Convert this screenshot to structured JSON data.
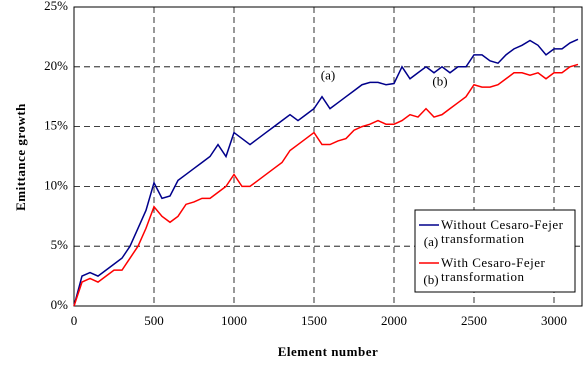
{
  "chart_data": {
    "type": "line",
    "xlabel": "Element number",
    "ylabel": "Emittance growth",
    "x": [
      0,
      50,
      100,
      150,
      200,
      250,
      300,
      350,
      400,
      450,
      500,
      550,
      600,
      650,
      700,
      750,
      800,
      850,
      900,
      950,
      1000,
      1050,
      1100,
      1150,
      1200,
      1250,
      1300,
      1350,
      1400,
      1450,
      1500,
      1550,
      1600,
      1650,
      1700,
      1750,
      1800,
      1850,
      1900,
      1950,
      2000,
      2050,
      2100,
      2150,
      2200,
      2250,
      2300,
      2350,
      2400,
      2450,
      2500,
      2550,
      2600,
      2650,
      2700,
      2750,
      2800,
      2850,
      2900,
      2950,
      3000,
      3050,
      3100,
      3150
    ],
    "series": [
      {
        "name": "Without Cesaro-Fejer transformation",
        "label": "(a)",
        "color": "#00008b",
        "values": [
          0,
          2.5,
          2.8,
          2.5,
          3,
          3.5,
          4,
          5,
          6.5,
          8,
          10.3,
          9,
          9.2,
          10.5,
          11,
          11.5,
          12,
          12.5,
          13.5,
          12.5,
          14.5,
          14,
          13.5,
          14,
          14.5,
          15,
          15.5,
          16,
          15.5,
          16,
          16.5,
          17.5,
          16.5,
          17,
          17.5,
          18,
          18.5,
          18.7,
          18.7,
          18.5,
          18.6,
          20,
          19,
          19.5,
          20,
          19.5,
          20,
          19.5,
          20,
          20,
          21,
          21,
          20.5,
          20.3,
          21,
          21.5,
          21.8,
          22.2,
          21.8,
          21,
          21.5,
          21.5,
          22,
          22.3
        ]
      },
      {
        "name": "With Cesaro-Fejer transformation",
        "label": "(b)",
        "color": "#ff0000",
        "values": [
          0,
          2,
          2.3,
          2,
          2.5,
          3,
          3,
          4,
          5,
          6.5,
          8.3,
          7.5,
          7,
          7.5,
          8.5,
          8.7,
          9,
          9,
          9.5,
          10,
          11,
          10,
          10,
          10.5,
          11,
          11.5,
          12,
          13,
          13.5,
          14,
          14.5,
          13.5,
          13.5,
          13.8,
          14,
          14.7,
          15,
          15.2,
          15.5,
          15.2,
          15.2,
          15.5,
          16,
          15.8,
          16.5,
          15.8,
          16,
          16.5,
          17,
          17.5,
          18.5,
          18.3,
          18.3,
          18.5,
          19,
          19.5,
          19.5,
          19.3,
          19.5,
          19,
          19.5,
          19.5,
          20,
          20.2
        ]
      }
    ],
    "xlim": [
      0,
      3175
    ],
    "xticks": [
      0,
      500,
      1000,
      1500,
      2000,
      2500,
      3000
    ],
    "ylim": [
      0,
      25
    ],
    "yticks": [
      {
        "value": 0,
        "label": "0%"
      },
      {
        "value": 5,
        "label": "5%"
      },
      {
        "value": 10,
        "label": "10%"
      },
      {
        "value": 15,
        "label": "15%"
      },
      {
        "value": 20,
        "label": "20%"
      },
      {
        "value": 25,
        "label": "25%"
      }
    ],
    "grid": true,
    "annotations": [
      {
        "series": 0,
        "x": 1700
      },
      {
        "series": 1,
        "x": 2400
      }
    ]
  }
}
